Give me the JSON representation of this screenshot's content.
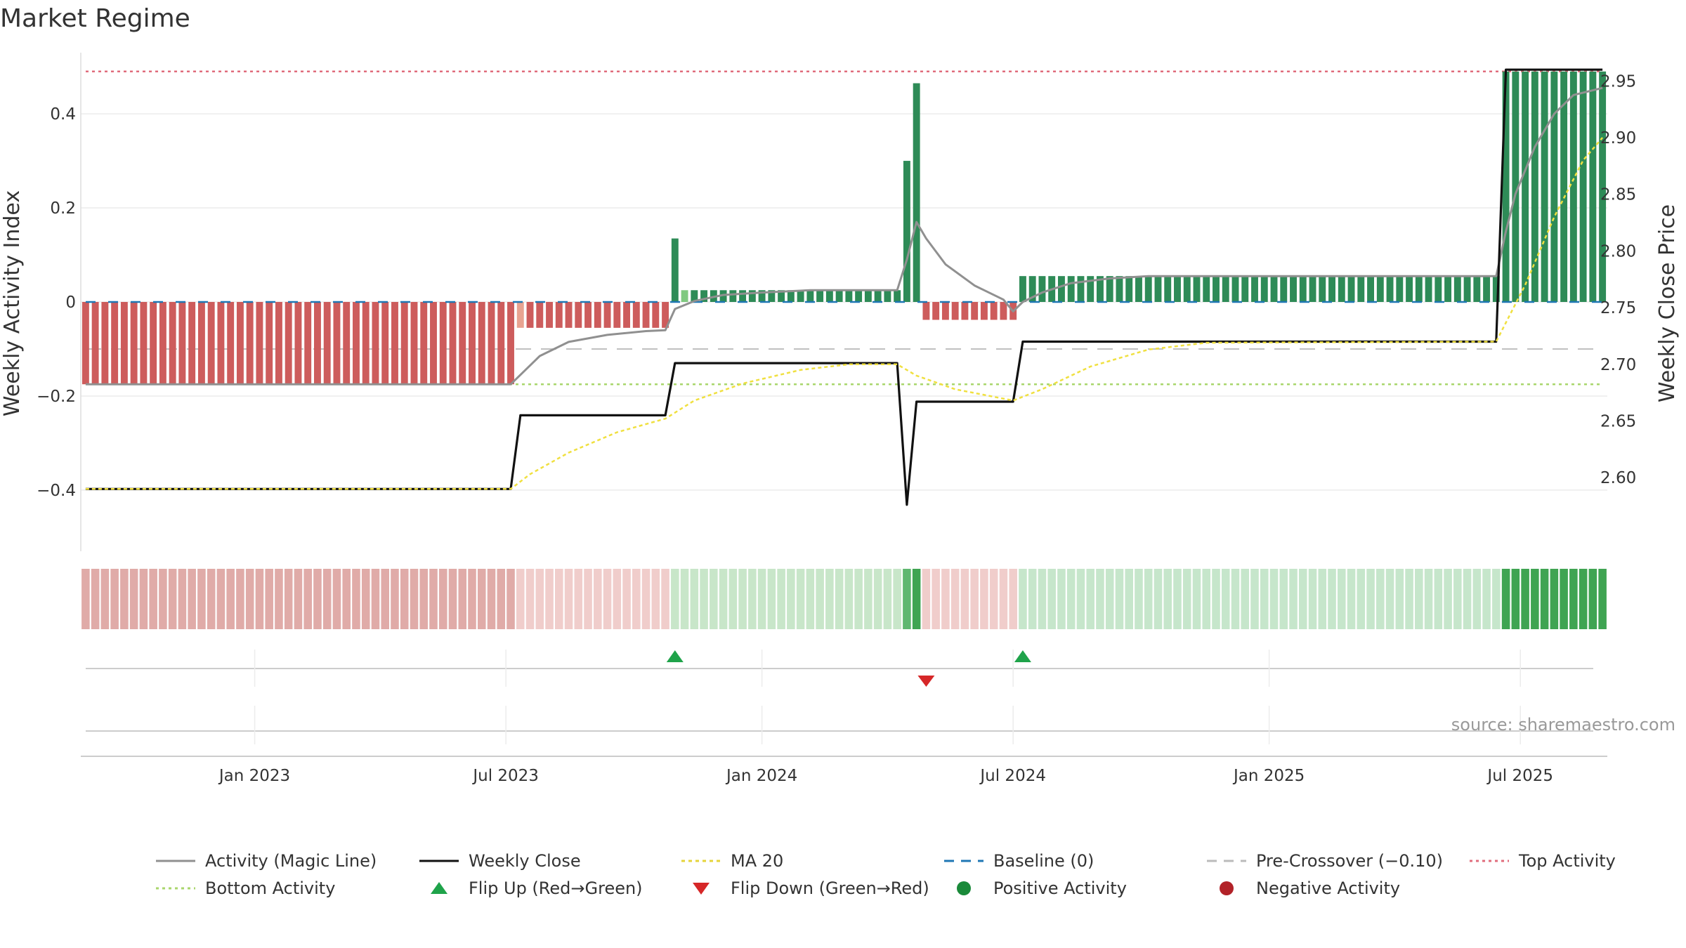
{
  "chart_data": {
    "type": "bar",
    "title": "Market Regime",
    "source": "source: sharemaestro.com",
    "left_axis": {
      "label": "Weekly Activity Index",
      "range": [
        -0.53,
        0.53
      ],
      "ticks": [
        0.4,
        0.2,
        0,
        -0.2,
        -0.4
      ],
      "tick_labels": [
        "0.4",
        "0.2",
        "0",
        "−0.2",
        "−0.4"
      ]
    },
    "right_axis": {
      "label": "Weekly Close Price",
      "range": [
        2.535,
        2.975
      ],
      "ticks": [
        2.95,
        2.9,
        2.85,
        2.8,
        2.75,
        2.7,
        2.65,
        2.6
      ],
      "tick_labels": [
        "2.95",
        "2.90",
        "2.85",
        "2.80",
        "2.75",
        "2.70",
        "2.65",
        "2.60"
      ]
    },
    "x_ticks": [
      {
        "label": "Jan 2023",
        "week": 17.5
      },
      {
        "label": "Jul 2023",
        "week": 43.5
      },
      {
        "label": "Jan 2024",
        "week": 70
      },
      {
        "label": "Jul 2024",
        "week": 96
      },
      {
        "label": "Jan 2025",
        "week": 122.5
      },
      {
        "label": "Jul 2025",
        "week": 148.5
      }
    ],
    "num_weeks": 158,
    "reference_lines": {
      "top_activity": 0.49,
      "bottom_activity": -0.175,
      "baseline": 0,
      "pre_crossover": -0.1
    },
    "segments": [
      {
        "weeks": [
          0,
          44
        ],
        "value": -0.175,
        "color": "#cd5c5c",
        "strip": "#e0aba8"
      },
      {
        "weeks": [
          45,
          45
        ],
        "value": -0.055,
        "color": "#e8a391",
        "strip": "#f0cdcb"
      },
      {
        "weeks": [
          46,
          60
        ],
        "value": -0.055,
        "color": "#cd5c5c",
        "strip": "#f0cdcb"
      },
      {
        "weeks": [
          61,
          61
        ],
        "value": 0.135,
        "color": "#2e8b57",
        "strip": "#c8e6c9"
      },
      {
        "weeks": [
          62,
          62
        ],
        "value": 0.025,
        "color": "#7fc97f",
        "strip": "#c8e6c9"
      },
      {
        "weeks": [
          63,
          84
        ],
        "value": 0.025,
        "color": "#2e8b57",
        "strip": "#c8e6c9"
      },
      {
        "weeks": [
          85,
          85
        ],
        "value": 0.3,
        "color": "#2e8b57",
        "strip": "#5fb770"
      },
      {
        "weeks": [
          86,
          86
        ],
        "value": 0.465,
        "color": "#2e8b57",
        "strip": "#3fa452"
      },
      {
        "weeks": [
          87,
          96
        ],
        "value": -0.038,
        "color": "#cd5c5c",
        "strip": "#f0cdcb"
      },
      {
        "weeks": [
          97,
          146
        ],
        "value": 0.055,
        "color": "#2e8b57",
        "strip": "#c6e6cb"
      },
      {
        "weeks": [
          147,
          157
        ],
        "value": 0.49,
        "color": "#2e8b57",
        "strip": "#3fa452"
      }
    ],
    "series": [
      {
        "name": "Activity (Magic Line)",
        "axis": "left",
        "color": "#909090",
        "points": [
          [
            0,
            -0.175
          ],
          [
            44,
            -0.175
          ],
          [
            45,
            -0.155
          ],
          [
            47,
            -0.115
          ],
          [
            50,
            -0.085
          ],
          [
            54,
            -0.07
          ],
          [
            58,
            -0.062
          ],
          [
            60,
            -0.06
          ],
          [
            61,
            -0.015
          ],
          [
            63,
            0.002
          ],
          [
            66,
            0.015
          ],
          [
            70,
            0.02
          ],
          [
            75,
            0.025
          ],
          [
            84,
            0.025
          ],
          [
            85,
            0.09
          ],
          [
            86,
            0.17
          ],
          [
            87,
            0.135
          ],
          [
            89,
            0.08
          ],
          [
            92,
            0.035
          ],
          [
            95,
            0.005
          ],
          [
            96,
            -0.02
          ],
          [
            97,
            0.0
          ],
          [
            99,
            0.02
          ],
          [
            102,
            0.04
          ],
          [
            106,
            0.05
          ],
          [
            110,
            0.055
          ],
          [
            146,
            0.055
          ],
          [
            147,
            0.15
          ],
          [
            148,
            0.23
          ],
          [
            150,
            0.33
          ],
          [
            152,
            0.4
          ],
          [
            154,
            0.44
          ],
          [
            157,
            0.455
          ]
        ]
      },
      {
        "name": "Weekly Close",
        "axis": "right",
        "color": "#111111",
        "points": [
          [
            0,
            2.59
          ],
          [
            44,
            2.59
          ],
          [
            45,
            2.655
          ],
          [
            60,
            2.655
          ],
          [
            61,
            2.701
          ],
          [
            84,
            2.701
          ],
          [
            85,
            2.576
          ],
          [
            86,
            2.667
          ],
          [
            96,
            2.667
          ],
          [
            97,
            2.72
          ],
          [
            146,
            2.72
          ],
          [
            147,
            2.96
          ],
          [
            157,
            2.96
          ]
        ]
      },
      {
        "name": "MA 20",
        "axis": "right",
        "color": "#f0e040",
        "points": [
          [
            0,
            2.59
          ],
          [
            44,
            2.59
          ],
          [
            46,
            2.603
          ],
          [
            50,
            2.622
          ],
          [
            55,
            2.64
          ],
          [
            60,
            2.652
          ],
          [
            63,
            2.668
          ],
          [
            68,
            2.683
          ],
          [
            74,
            2.695
          ],
          [
            79,
            2.7
          ],
          [
            84,
            2.7
          ],
          [
            86,
            2.69
          ],
          [
            90,
            2.678
          ],
          [
            96,
            2.668
          ],
          [
            99,
            2.678
          ],
          [
            104,
            2.698
          ],
          [
            110,
            2.713
          ],
          [
            116,
            2.719
          ],
          [
            146,
            2.72
          ],
          [
            149,
            2.77
          ],
          [
            152,
            2.83
          ],
          [
            155,
            2.88
          ],
          [
            157,
            2.9
          ]
        ]
      }
    ],
    "flip_up_weeks": [
      61,
      97
    ],
    "flip_down_weeks": [
      87
    ],
    "legend": [
      {
        "label": "Activity (Magic Line)",
        "kind": "line",
        "color": "#909090",
        "dash": ""
      },
      {
        "label": "Weekly Close",
        "kind": "line",
        "color": "#111111",
        "dash": ""
      },
      {
        "label": "MA 20",
        "kind": "line",
        "color": "#e6d43a",
        "dash": "5,5"
      },
      {
        "label": "Baseline (0)",
        "kind": "line",
        "color": "#1f77b4",
        "dash": "14,10"
      },
      {
        "label": "Pre-Crossover (−0.10)",
        "kind": "line",
        "color": "#bbbbbb",
        "dash": "14,10"
      },
      {
        "label": "Top Activity",
        "kind": "line",
        "color": "#e06c7c",
        "dash": "4,5"
      },
      {
        "label": "Bottom Activity",
        "kind": "line",
        "color": "#a9d66c",
        "dash": "4,5"
      },
      {
        "label": "Flip Up (Red→Green)",
        "kind": "tri-up",
        "color": "#1fa34a",
        "dash": ""
      },
      {
        "label": "Flip Down (Green→Red)",
        "kind": "tri-down",
        "color": "#d62728",
        "dash": ""
      },
      {
        "label": "Positive Activity",
        "kind": "dot",
        "color": "#1a8a3a",
        "dash": ""
      },
      {
        "label": "Negative Activity",
        "kind": "dot",
        "color": "#b22228",
        "dash": ""
      }
    ]
  }
}
